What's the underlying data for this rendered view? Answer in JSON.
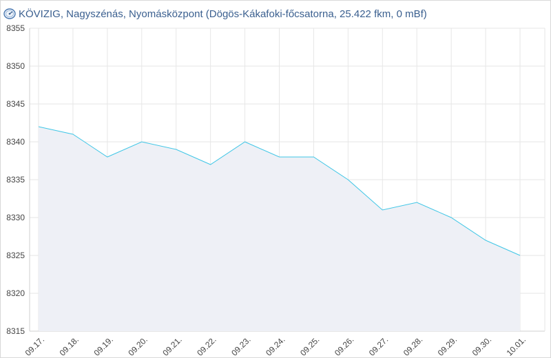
{
  "title": "KÖVIZIG, Nagyszénás, Nyomásközpont (Dögös-Kákafoki-főcsatorna, 25.422 fkm, 0 mBf)",
  "chart_data": {
    "type": "area",
    "title": "KÖVIZIG, Nagyszénás, Nyomásközpont (Dögös-Kákafoki-főcsatorna, 25.422 fkm, 0 mBf)",
    "xlabel": "",
    "ylabel": "",
    "categories": [
      "09.17.",
      "09.18.",
      "09.19.",
      "09.20.",
      "09.21.",
      "09.22.",
      "09.23.",
      "09.24.",
      "09.25.",
      "09.26.",
      "09.27.",
      "09.28.",
      "09.29.",
      "09.30.",
      "10.01."
    ],
    "values": [
      8342,
      8341,
      8338,
      8340,
      8339,
      8337,
      8340,
      8338,
      8338,
      8335,
      8331,
      8332,
      8330,
      8327,
      8325
    ],
    "ylim": [
      8315,
      8355
    ],
    "yticks": [
      8315,
      8320,
      8325,
      8330,
      8335,
      8340,
      8345,
      8350,
      8355
    ],
    "grid": true,
    "line_color": "#3fc6e6",
    "fill_color": "#eef0f6"
  }
}
